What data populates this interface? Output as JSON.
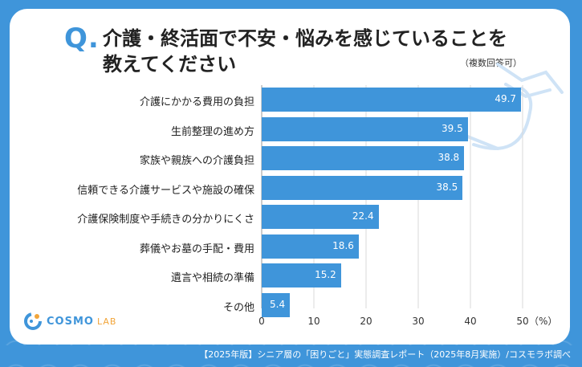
{
  "header": {
    "q_mark": "Q.",
    "title_line1": "介護・終活面で不安・悩みを感じていることを",
    "title_line2": "教えてください",
    "subtitle": "（複数回答可）"
  },
  "chart_data": {
    "type": "bar",
    "orientation": "horizontal",
    "categories": [
      "介護にかかる費用の負担",
      "生前整理の進め方",
      "家族や親族への介護負担",
      "信頼できる介護サービスや施設の確保",
      "介護保険制度や手続きの分かりにくさ",
      "葬儀やお墓の手配・費用",
      "遺言や相続の準備",
      "その他"
    ],
    "values": [
      49.7,
      39.5,
      38.8,
      38.5,
      22.4,
      18.6,
      15.2,
      5.4
    ],
    "value_labels": [
      "49.7",
      "39.5",
      "38.8",
      "38.5",
      "22.4",
      "18.6",
      "15.2",
      "5.4"
    ],
    "xlim": [
      0,
      50
    ],
    "x_ticks": [
      "0",
      "10",
      "20",
      "30",
      "40",
      "50"
    ],
    "x_unit": "（%）",
    "grid": true,
    "bar_color": "#3f95da"
  },
  "logo": {
    "name": "COSMO",
    "suffix": "LAB"
  },
  "footer": {
    "source": "【2025年版】シニア層の「困りごと」実態調査レポート（2025年8月実施）/コスモラボ調べ"
  },
  "colors": {
    "accent": "#3f95da",
    "logo_orange": "#f2a53a"
  }
}
